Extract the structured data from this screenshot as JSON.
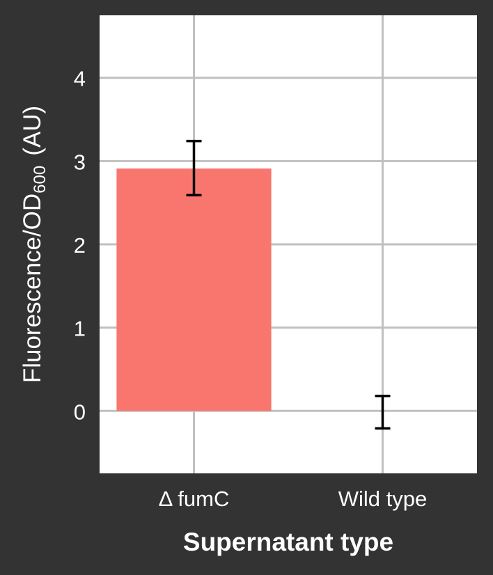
{
  "chart_data": {
    "type": "bar",
    "categories": [
      "Δ fumC",
      "Wild type"
    ],
    "values": [
      2.91,
      0.0
    ],
    "error_bars": {
      "lower": [
        2.59,
        -0.21
      ],
      "upper": [
        3.24,
        0.18
      ]
    },
    "xlabel": "Supernatant type",
    "ylabel_main": "Fluorescence/OD",
    "ylabel_subscript": "600",
    "ylabel_unit": "(AU)",
    "yticks": [
      0,
      1,
      2,
      3,
      4
    ],
    "ylim": [
      -0.75,
      4.75
    ],
    "grid": true,
    "legend": "none",
    "colors": {
      "background": "#333333",
      "panel": "#FFFFFF",
      "grid": "#C0C0C0",
      "bar": "#F8766D",
      "errorbar": "#000000",
      "text": "#FFFFFF"
    }
  }
}
